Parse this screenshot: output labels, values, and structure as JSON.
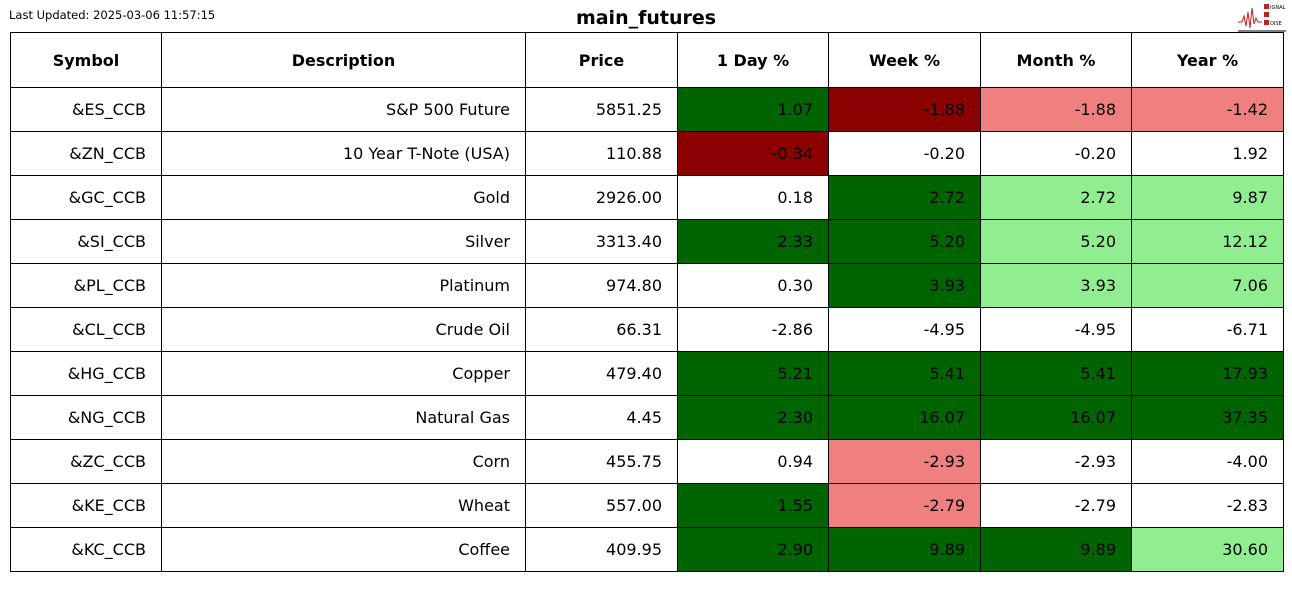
{
  "last_updated": "Last Updated: 2025-03-06 11:57:15",
  "title": "main_futures",
  "logo": {
    "text": [
      "SIGNAL",
      "2",
      "NOISE"
    ]
  },
  "colors": {
    "dark_green": "#006400",
    "dark_red": "#8b0000",
    "light_green": "#90ee90",
    "light_red": "#f08080",
    "white": "#ffffff"
  },
  "columns": [
    "Symbol",
    "Description",
    "Price",
    "1 Day %",
    "Week %",
    "Month %",
    "Year %"
  ],
  "rows": [
    {
      "cells": [
        "&ES_CCB",
        "S&P 500 Future",
        "5851.25",
        "1.07",
        "-1.88",
        "-1.88",
        "-1.42"
      ],
      "fills": [
        "dark_green",
        "dark_red",
        "light_red",
        "light_red"
      ]
    },
    {
      "cells": [
        "&ZN_CCB",
        "10 Year T-Note (USA)",
        "110.88",
        "-0.34",
        "-0.20",
        "-0.20",
        "1.92"
      ],
      "fills": [
        "dark_red",
        "white",
        "white",
        "white"
      ]
    },
    {
      "cells": [
        "&GC_CCB",
        "Gold",
        "2926.00",
        "0.18",
        "2.72",
        "2.72",
        "9.87"
      ],
      "fills": [
        "white",
        "dark_green",
        "light_green",
        "light_green"
      ]
    },
    {
      "cells": [
        "&SI_CCB",
        "Silver",
        "3313.40",
        "2.33",
        "5.20",
        "5.20",
        "12.12"
      ],
      "fills": [
        "dark_green",
        "dark_green",
        "light_green",
        "light_green"
      ]
    },
    {
      "cells": [
        "&PL_CCB",
        "Platinum",
        "974.80",
        "0.30",
        "3.93",
        "3.93",
        "7.06"
      ],
      "fills": [
        "white",
        "dark_green",
        "light_green",
        "light_green"
      ]
    },
    {
      "cells": [
        "&CL_CCB",
        "Crude Oil",
        "66.31",
        "-2.86",
        "-4.95",
        "-4.95",
        "-6.71"
      ],
      "fills": [
        "white",
        "white",
        "white",
        "white"
      ]
    },
    {
      "cells": [
        "&HG_CCB",
        "Copper",
        "479.40",
        "5.21",
        "5.41",
        "5.41",
        "17.93"
      ],
      "fills": [
        "dark_green",
        "dark_green",
        "dark_green",
        "dark_green"
      ]
    },
    {
      "cells": [
        "&NG_CCB",
        "Natural Gas",
        "4.45",
        "2.30",
        "16.07",
        "16.07",
        "37.35"
      ],
      "fills": [
        "dark_green",
        "dark_green",
        "dark_green",
        "dark_green"
      ]
    },
    {
      "cells": [
        "&ZC_CCB",
        "Corn",
        "455.75",
        "0.94",
        "-2.93",
        "-2.93",
        "-4.00"
      ],
      "fills": [
        "white",
        "light_red",
        "white",
        "white"
      ]
    },
    {
      "cells": [
        "&KE_CCB",
        "Wheat",
        "557.00",
        "1.55",
        "-2.79",
        "-2.79",
        "-2.83"
      ],
      "fills": [
        "dark_green",
        "light_red",
        "white",
        "white"
      ]
    },
    {
      "cells": [
        "&KC_CCB",
        "Coffee",
        "409.95",
        "2.90",
        "9.89",
        "9.89",
        "30.60"
      ],
      "fills": [
        "dark_green",
        "dark_green",
        "dark_green",
        "light_green"
      ]
    }
  ]
}
